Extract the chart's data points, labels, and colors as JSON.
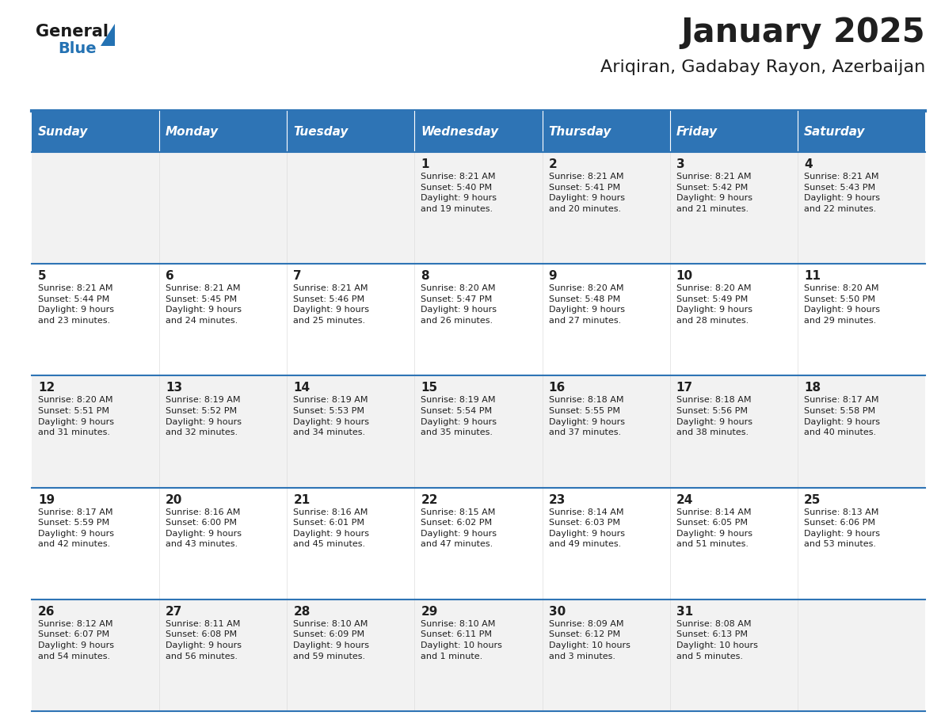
{
  "title": "January 2025",
  "subtitle": "Ariqiran, Gadabay Rayon, Azerbaijan",
  "header_bg": "#2E74B5",
  "header_text_color": "#FFFFFF",
  "cell_bg_light": "#F2F2F2",
  "cell_bg_white": "#FFFFFF",
  "cell_border_color": "#2E74B5",
  "day_names": [
    "Sunday",
    "Monday",
    "Tuesday",
    "Wednesday",
    "Thursday",
    "Friday",
    "Saturday"
  ],
  "title_color": "#1F1F1F",
  "subtitle_color": "#1F1F1F",
  "logo_general_color": "#1A1A1A",
  "logo_blue_color": "#2472B3",
  "logo_triangle_color": "#2472B3",
  "calendar_data": [
    [
      {
        "day": "",
        "info": ""
      },
      {
        "day": "",
        "info": ""
      },
      {
        "day": "",
        "info": ""
      },
      {
        "day": "1",
        "info": "Sunrise: 8:21 AM\nSunset: 5:40 PM\nDaylight: 9 hours\nand 19 minutes."
      },
      {
        "day": "2",
        "info": "Sunrise: 8:21 AM\nSunset: 5:41 PM\nDaylight: 9 hours\nand 20 minutes."
      },
      {
        "day": "3",
        "info": "Sunrise: 8:21 AM\nSunset: 5:42 PM\nDaylight: 9 hours\nand 21 minutes."
      },
      {
        "day": "4",
        "info": "Sunrise: 8:21 AM\nSunset: 5:43 PM\nDaylight: 9 hours\nand 22 minutes."
      }
    ],
    [
      {
        "day": "5",
        "info": "Sunrise: 8:21 AM\nSunset: 5:44 PM\nDaylight: 9 hours\nand 23 minutes."
      },
      {
        "day": "6",
        "info": "Sunrise: 8:21 AM\nSunset: 5:45 PM\nDaylight: 9 hours\nand 24 minutes."
      },
      {
        "day": "7",
        "info": "Sunrise: 8:21 AM\nSunset: 5:46 PM\nDaylight: 9 hours\nand 25 minutes."
      },
      {
        "day": "8",
        "info": "Sunrise: 8:20 AM\nSunset: 5:47 PM\nDaylight: 9 hours\nand 26 minutes."
      },
      {
        "day": "9",
        "info": "Sunrise: 8:20 AM\nSunset: 5:48 PM\nDaylight: 9 hours\nand 27 minutes."
      },
      {
        "day": "10",
        "info": "Sunrise: 8:20 AM\nSunset: 5:49 PM\nDaylight: 9 hours\nand 28 minutes."
      },
      {
        "day": "11",
        "info": "Sunrise: 8:20 AM\nSunset: 5:50 PM\nDaylight: 9 hours\nand 29 minutes."
      }
    ],
    [
      {
        "day": "12",
        "info": "Sunrise: 8:20 AM\nSunset: 5:51 PM\nDaylight: 9 hours\nand 31 minutes."
      },
      {
        "day": "13",
        "info": "Sunrise: 8:19 AM\nSunset: 5:52 PM\nDaylight: 9 hours\nand 32 minutes."
      },
      {
        "day": "14",
        "info": "Sunrise: 8:19 AM\nSunset: 5:53 PM\nDaylight: 9 hours\nand 34 minutes."
      },
      {
        "day": "15",
        "info": "Sunrise: 8:19 AM\nSunset: 5:54 PM\nDaylight: 9 hours\nand 35 minutes."
      },
      {
        "day": "16",
        "info": "Sunrise: 8:18 AM\nSunset: 5:55 PM\nDaylight: 9 hours\nand 37 minutes."
      },
      {
        "day": "17",
        "info": "Sunrise: 8:18 AM\nSunset: 5:56 PM\nDaylight: 9 hours\nand 38 minutes."
      },
      {
        "day": "18",
        "info": "Sunrise: 8:17 AM\nSunset: 5:58 PM\nDaylight: 9 hours\nand 40 minutes."
      }
    ],
    [
      {
        "day": "19",
        "info": "Sunrise: 8:17 AM\nSunset: 5:59 PM\nDaylight: 9 hours\nand 42 minutes."
      },
      {
        "day": "20",
        "info": "Sunrise: 8:16 AM\nSunset: 6:00 PM\nDaylight: 9 hours\nand 43 minutes."
      },
      {
        "day": "21",
        "info": "Sunrise: 8:16 AM\nSunset: 6:01 PM\nDaylight: 9 hours\nand 45 minutes."
      },
      {
        "day": "22",
        "info": "Sunrise: 8:15 AM\nSunset: 6:02 PM\nDaylight: 9 hours\nand 47 minutes."
      },
      {
        "day": "23",
        "info": "Sunrise: 8:14 AM\nSunset: 6:03 PM\nDaylight: 9 hours\nand 49 minutes."
      },
      {
        "day": "24",
        "info": "Sunrise: 8:14 AM\nSunset: 6:05 PM\nDaylight: 9 hours\nand 51 minutes."
      },
      {
        "day": "25",
        "info": "Sunrise: 8:13 AM\nSunset: 6:06 PM\nDaylight: 9 hours\nand 53 minutes."
      }
    ],
    [
      {
        "day": "26",
        "info": "Sunrise: 8:12 AM\nSunset: 6:07 PM\nDaylight: 9 hours\nand 54 minutes."
      },
      {
        "day": "27",
        "info": "Sunrise: 8:11 AM\nSunset: 6:08 PM\nDaylight: 9 hours\nand 56 minutes."
      },
      {
        "day": "28",
        "info": "Sunrise: 8:10 AM\nSunset: 6:09 PM\nDaylight: 9 hours\nand 59 minutes."
      },
      {
        "day": "29",
        "info": "Sunrise: 8:10 AM\nSunset: 6:11 PM\nDaylight: 10 hours\nand 1 minute."
      },
      {
        "day": "30",
        "info": "Sunrise: 8:09 AM\nSunset: 6:12 PM\nDaylight: 10 hours\nand 3 minutes."
      },
      {
        "day": "31",
        "info": "Sunrise: 8:08 AM\nSunset: 6:13 PM\nDaylight: 10 hours\nand 5 minutes."
      },
      {
        "day": "",
        "info": ""
      }
    ]
  ]
}
